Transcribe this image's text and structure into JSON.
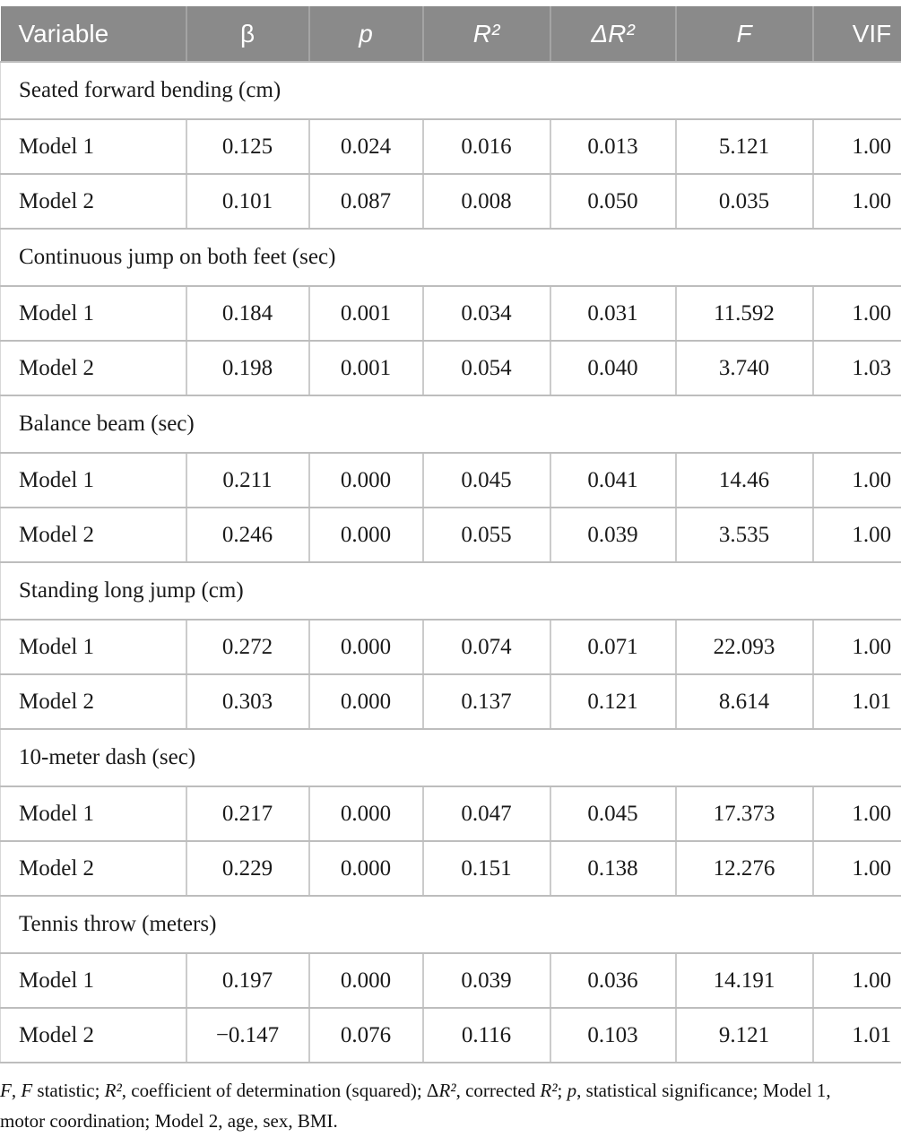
{
  "colors": {
    "header_background": "#8a8a8a",
    "header_text": "#ffffff",
    "row_border": "#bdbdbd",
    "column_divider": "#cbcbcb",
    "body_text": "#1a1a1a"
  },
  "table": {
    "columns": [
      {
        "key": "variable",
        "label": "Variable",
        "align": "left",
        "italic": false
      },
      {
        "key": "beta",
        "label": "β",
        "italic": false
      },
      {
        "key": "p",
        "label": "p",
        "italic": true
      },
      {
        "key": "r2",
        "label": "R²",
        "italic": true
      },
      {
        "key": "delta-r2",
        "label": "ΔR²",
        "italic": true
      },
      {
        "key": "f",
        "label": "F",
        "italic": true
      },
      {
        "key": "vif",
        "label": "VIF",
        "italic": false
      }
    ],
    "sections": [
      {
        "title": "Seated forward bending (cm)",
        "rows": [
          {
            "label": "Model 1",
            "values": [
              "0.125",
              "0.024",
              "0.016",
              "0.013",
              "5.121",
              "1.00"
            ]
          },
          {
            "label": "Model 2",
            "values": [
              "0.101",
              "0.087",
              "0.008",
              "0.050",
              "0.035",
              "1.00"
            ]
          }
        ]
      },
      {
        "title": "Continuous jump on both feet (sec)",
        "rows": [
          {
            "label": "Model 1",
            "values": [
              "0.184",
              "0.001",
              "0.034",
              "0.031",
              "11.592",
              "1.00"
            ]
          },
          {
            "label": "Model 2",
            "values": [
              "0.198",
              "0.001",
              "0.054",
              "0.040",
              "3.740",
              "1.03"
            ]
          }
        ]
      },
      {
        "title": "Balance beam (sec)",
        "rows": [
          {
            "label": "Model 1",
            "values": [
              "0.211",
              "0.000",
              "0.045",
              "0.041",
              "14.46",
              "1.00"
            ]
          },
          {
            "label": "Model 2",
            "values": [
              "0.246",
              "0.000",
              "0.055",
              "0.039",
              "3.535",
              "1.00"
            ]
          }
        ]
      },
      {
        "title": "Standing long jump (cm)",
        "rows": [
          {
            "label": "Model 1",
            "values": [
              "0.272",
              "0.000",
              "0.074",
              "0.071",
              "22.093",
              "1.00"
            ]
          },
          {
            "label": "Model 2",
            "values": [
              "0.303",
              "0.000",
              "0.137",
              "0.121",
              "8.614",
              "1.01"
            ]
          }
        ]
      },
      {
        "title": "10-meter dash (sec)",
        "rows": [
          {
            "label": "Model 1",
            "values": [
              "0.217",
              "0.000",
              "0.047",
              "0.045",
              "17.373",
              "1.00"
            ]
          },
          {
            "label": "Model 2",
            "values": [
              "0.229",
              "0.000",
              "0.151",
              "0.138",
              "12.276",
              "1.00"
            ]
          }
        ]
      },
      {
        "title": "Tennis throw (meters)",
        "rows": [
          {
            "label": "Model 1",
            "values": [
              "0.197",
              "0.000",
              "0.039",
              "0.036",
              "14.191",
              "1.00"
            ]
          },
          {
            "label": "Model 2",
            "values": [
              "−0.147",
              "0.076",
              "0.116",
              "0.103",
              "9.121",
              "1.01"
            ]
          }
        ]
      }
    ]
  },
  "footnote": {
    "segments": [
      {
        "text": "F",
        "italic": true
      },
      {
        "text": ", ",
        "italic": false
      },
      {
        "text": "F",
        "italic": true
      },
      {
        "text": " statistic; ",
        "italic": false
      },
      {
        "text": "R²",
        "italic": true
      },
      {
        "text": ", coefficient of determination (squared); Δ",
        "italic": false
      },
      {
        "text": "R²",
        "italic": true
      },
      {
        "text": ", corrected ",
        "italic": false
      },
      {
        "text": "R²",
        "italic": true
      },
      {
        "text": "; ",
        "italic": false
      },
      {
        "text": "p",
        "italic": true
      },
      {
        "text": ", statistical significance; Model 1, motor coordination; Model 2, age, sex, BMI.",
        "italic": false
      }
    ]
  }
}
